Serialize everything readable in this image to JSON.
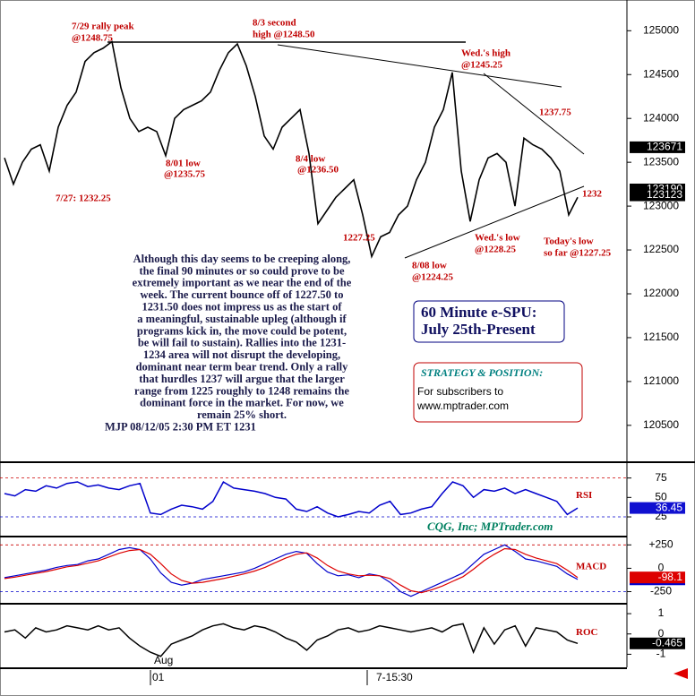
{
  "chart_data": [
    {
      "type": "line",
      "name": "price",
      "color": "#000000",
      "values": [
        123550,
        123250,
        123500,
        123650,
        123700,
        123400,
        123900,
        124150,
        124300,
        124650,
        124750,
        124800,
        124875,
        124350,
        124000,
        123850,
        123900,
        123850,
        123575,
        124000,
        124100,
        124150,
        124200,
        124300,
        124550,
        124750,
        124850,
        124600,
        124250,
        123800,
        123650,
        123900,
        124000,
        124100,
        123600,
        122800,
        122950,
        123100,
        123200,
        123300,
        122900,
        122425,
        122650,
        122700,
        122900,
        123000,
        123300,
        123500,
        123900,
        124100,
        124525,
        123400,
        122825,
        123300,
        123550,
        123600,
        123500,
        123000,
        123775,
        123700,
        123650,
        123550,
        123400,
        122900,
        123100
      ],
      "ylim": [
        120100,
        125330
      ],
      "yticks": [
        120500,
        121000,
        121500,
        122000,
        122500,
        123000,
        123500,
        124000,
        124500,
        125000
      ],
      "markers": [
        123671,
        123190,
        123123
      ],
      "annotations": [
        "7/29 rally peak",
        "@1248.75",
        "8/3 second",
        "high @1248.50",
        "Wed.'s high",
        "@1245.25",
        "1237.75",
        "8/01 low",
        "@1235.75",
        "8/4 low",
        "@1236.50",
        "7/27: 1232.25",
        "1232",
        "1227.25",
        "Wed.'s low",
        "@1228.25",
        "Today's low",
        "so far @1227.25",
        "8/08 low",
        "@1224.25"
      ],
      "x_labels": [
        "Aug",
        "01",
        "7-15:30"
      ]
    },
    {
      "type": "line",
      "name": "RSI",
      "color": "#0000cc",
      "values": [
        55,
        52,
        60,
        58,
        65,
        62,
        68,
        70,
        64,
        66,
        62,
        60,
        65,
        68,
        30,
        28,
        35,
        40,
        38,
        35,
        45,
        70,
        62,
        60,
        58,
        55,
        50,
        48,
        35,
        32,
        38,
        30,
        25,
        28,
        32,
        30,
        40,
        45,
        28,
        30,
        35,
        38,
        55,
        70,
        65,
        50,
        60,
        58,
        62,
        55,
        60,
        55,
        50,
        45,
        28,
        36.45
      ],
      "ylim": [
        2,
        93
      ],
      "yticks": [
        25,
        50,
        75
      ],
      "last_value": 36.45
    },
    {
      "type": "line",
      "name": "MACD",
      "series": [
        {
          "color": "#0000cc",
          "values": [
            -100,
            -80,
            -60,
            -40,
            -20,
            10,
            30,
            40,
            80,
            100,
            150,
            200,
            220,
            200,
            100,
            -50,
            -150,
            -180,
            -160,
            -120,
            -100,
            -80,
            -60,
            -40,
            0,
            50,
            100,
            150,
            180,
            160,
            50,
            -40,
            -80,
            -70,
            -100,
            -60,
            -80,
            -150,
            -250,
            -300,
            -250,
            -200,
            -150,
            -100,
            -50,
            50,
            150,
            200,
            250,
            180,
            100,
            80,
            50,
            20,
            -60,
            -118.2
          ]
        },
        {
          "color": "#dd0000",
          "values": [
            -110,
            -95,
            -75,
            -55,
            -35,
            -10,
            15,
            30,
            55,
            80,
            120,
            160,
            190,
            200,
            150,
            50,
            -60,
            -130,
            -160,
            -150,
            -130,
            -110,
            -85,
            -60,
            -30,
            10,
            60,
            110,
            150,
            165,
            110,
            30,
            -30,
            -60,
            -80,
            -75,
            -80,
            -110,
            -180,
            -240,
            -260,
            -230,
            -190,
            -140,
            -90,
            -10,
            80,
            150,
            210,
            200,
            150,
            110,
            80,
            50,
            -20,
            -98.1
          ]
        }
      ],
      "ylim": [
        -360,
        320
      ],
      "yticks": [
        {
          "value": 250,
          "label": "+250"
        },
        0,
        -250
      ]
    },
    {
      "type": "line",
      "name": "ROC",
      "color": "#000000",
      "values": [
        0.1,
        0.2,
        -0.2,
        0.3,
        0.1,
        0.2,
        0.4,
        0.3,
        0.2,
        0.4,
        0.2,
        0.3,
        -0.2,
        -0.6,
        -0.9,
        -1.1,
        -0.5,
        -0.3,
        -0.1,
        0.2,
        0.4,
        0.5,
        0.3,
        0.2,
        0.4,
        0.3,
        0.1,
        -0.2,
        -0.4,
        -0.8,
        -0.3,
        -0.1,
        0.2,
        0.3,
        0.1,
        0.2,
        0.4,
        0.3,
        0.2,
        0.1,
        0.2,
        0.3,
        0.1,
        0.4,
        0.5,
        -0.9,
        0.3,
        -0.5,
        0.2,
        0.4,
        -0.6,
        0.3,
        0.2,
        0.1,
        -0.3,
        -0.465
      ],
      "ylim": [
        -1.6,
        1.4
      ],
      "yticks": [
        -1,
        0,
        1
      ],
      "last_value": -0.465
    }
  ],
  "commentary": [
    "Although this day seems to be creeping along,",
    "the final 90 minutes or so could prove to be",
    "extremely important as we near the end of the",
    "week. The current bounce off of 1227.50 to",
    "1231.50 does not impress us as the start of",
    "a meaningful, sustainable upleg (although if",
    "programs kick in, the move could be potent,",
    "be will fail to sustain). Rallies into the 1231-",
    "1234 area will not disrupt the developing,",
    "dominant near term bear trend. Only a rally",
    "that hurdles 1237 will argue that the larger",
    "range from 1225 roughly to 1248 remains the",
    "dominant force in the market. For now, we",
    "remain 25% short.",
    "MJP 08/12/05 2:30 PM ET 1231"
  ],
  "title_box": [
    "60 Minute e-SPU:",
    "July 25th-Present"
  ],
  "strategy_box": [
    "STRATEGY & POSITION:",
    "For subscribers to",
    "www.mptrader.com"
  ],
  "watermark": "CQG, Inc; MPTrader.com"
}
